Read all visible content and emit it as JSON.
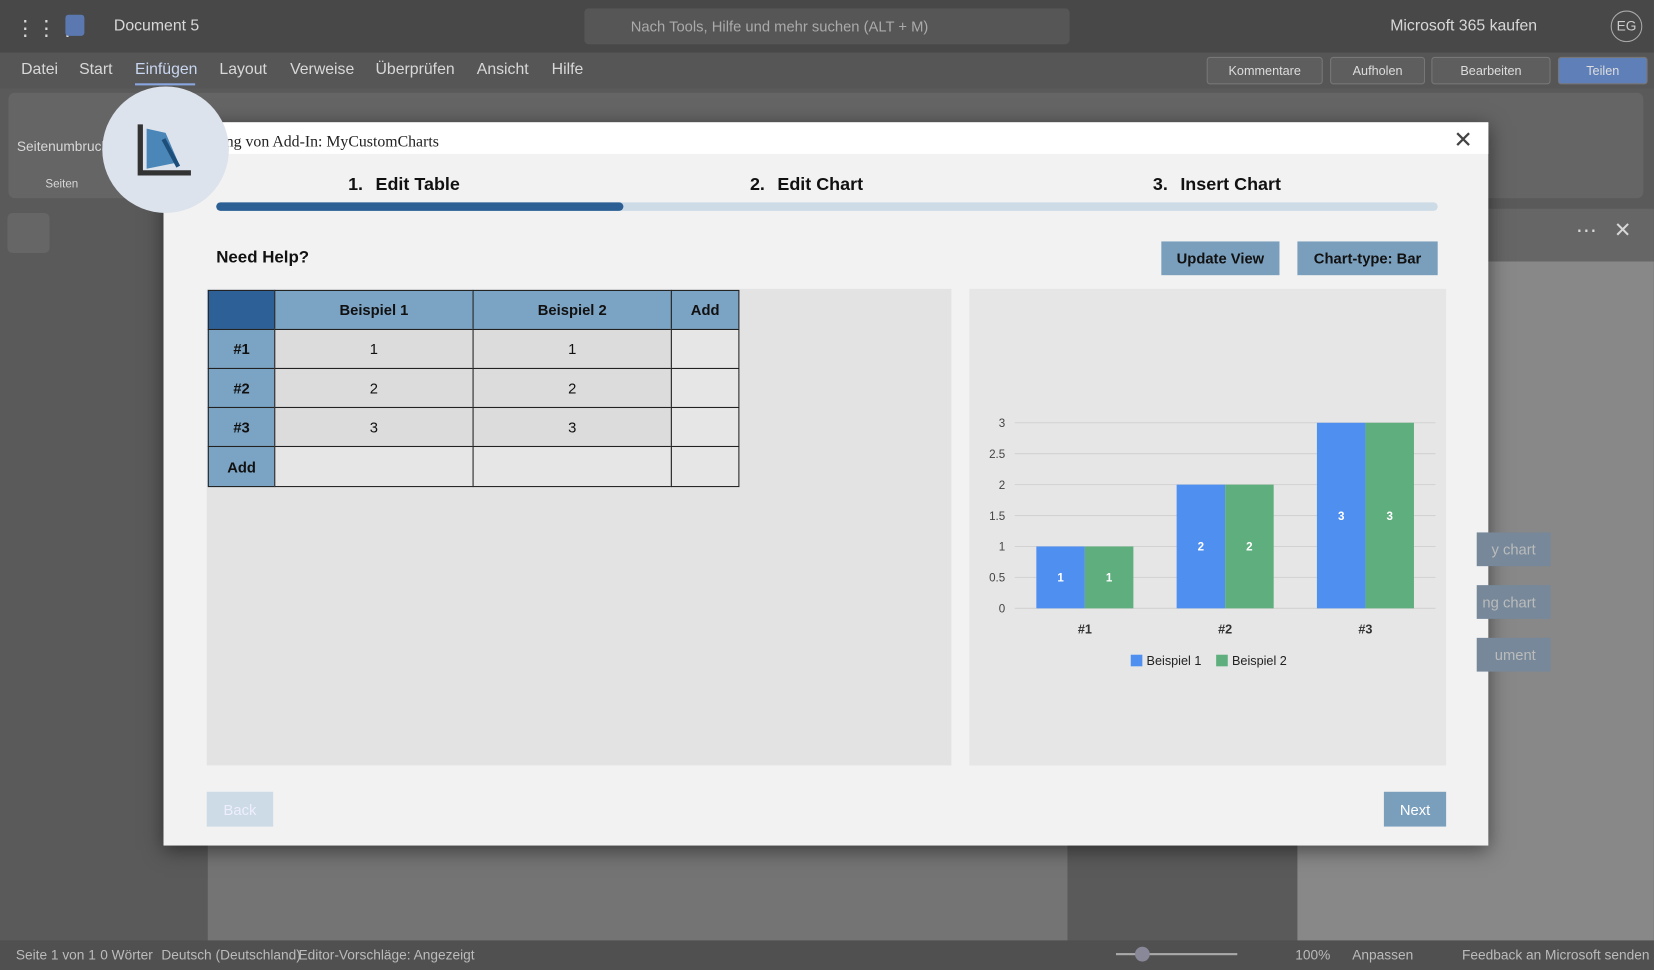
{
  "app": {
    "doc_title": "Document 5",
    "search": "Nach Tools, Hilfe und mehr suchen (ALT + M)",
    "buy": "Microsoft 365 kaufen",
    "avatar": "EG"
  },
  "menu": [
    "Datei",
    "Start",
    "Einfügen",
    "Layout",
    "Verweise",
    "Überprüfen",
    "Ansicht",
    "Hilfe"
  ],
  "actions": [
    "Kommentare",
    "Aufholen",
    "Bearbeiten",
    "Teilen"
  ],
  "ribbon": {
    "item": "Seitenumbruch",
    "group": "Seiten"
  },
  "side_buttons": [
    "y chart",
    "ng chart",
    "ument"
  ],
  "status": {
    "page": "Seite 1 von 1",
    "words": "0 Wörter",
    "lang": "Deutsch (Deutschland)",
    "editor": "Editor-Vorschläge: Angezeigt",
    "zoom": "100%",
    "fit": "Anpassen",
    "feedback": "Feedback an Microsoft senden"
  },
  "dialog": {
    "title": "ng von Add-In: MyCustomCharts",
    "steps": [
      {
        "num": "1.",
        "label": "Edit Table"
      },
      {
        "num": "2.",
        "label": "Edit Chart"
      },
      {
        "num": "3.",
        "label": "Insert Chart"
      }
    ],
    "help": "Need Help?",
    "update": "Update View",
    "chart_type": "Chart-type: Bar",
    "back": "Back",
    "next": "Next"
  },
  "table": {
    "columns": [
      "Beispiel 1",
      "Beispiel 2"
    ],
    "add": "Add",
    "rows": [
      {
        "label": "#1",
        "cells": [
          1,
          1
        ]
      },
      {
        "label": "#2",
        "cells": [
          2,
          2
        ]
      },
      {
        "label": "#3",
        "cells": [
          3,
          3
        ]
      }
    ]
  },
  "chart_data": {
    "type": "bar",
    "categories": [
      "#1",
      "#2",
      "#3"
    ],
    "series": [
      {
        "name": "Beispiel 1",
        "color": "#4f8ff0",
        "values": [
          1,
          2,
          3
        ]
      },
      {
        "name": "Beispiel 2",
        "color": "#5fae7d",
        "values": [
          1,
          2,
          3
        ]
      }
    ],
    "ylim": [
      0,
      3
    ],
    "yticks": [
      0,
      0.5,
      1,
      1.5,
      2,
      2.5,
      3
    ],
    "grid": true
  }
}
